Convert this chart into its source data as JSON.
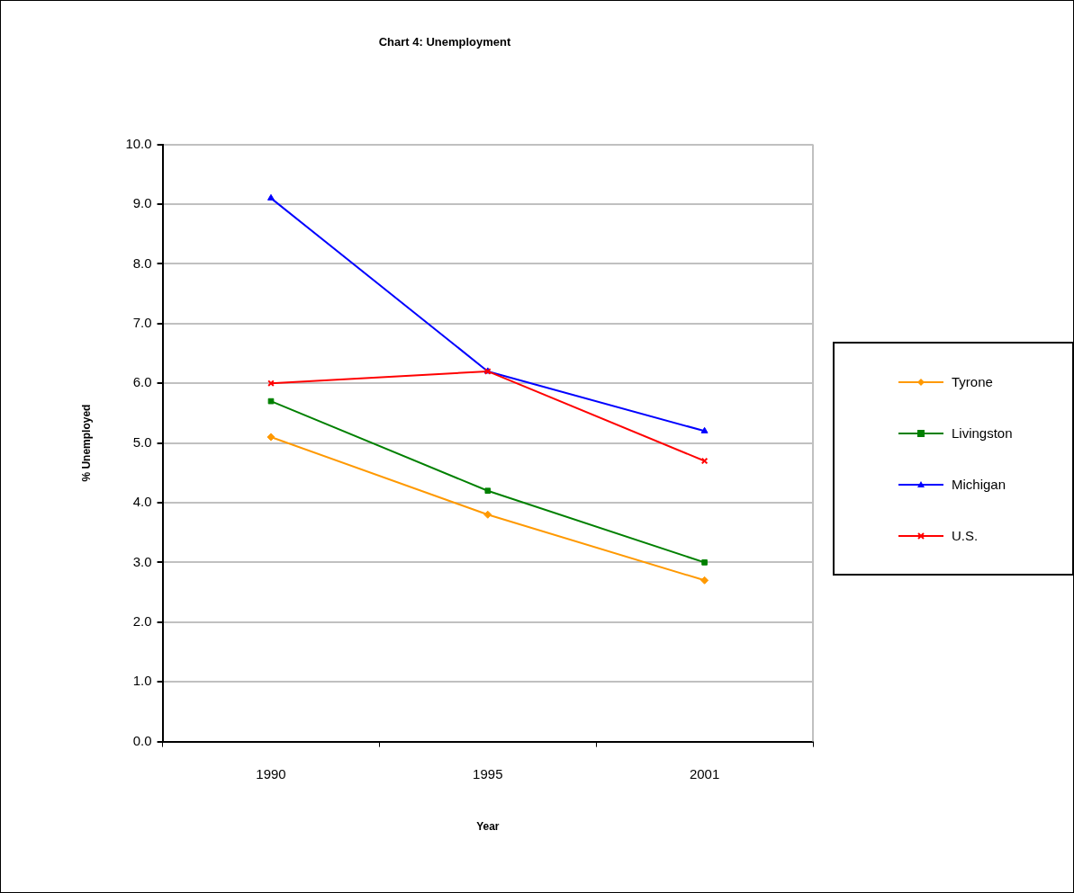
{
  "chart_data": {
    "type": "line",
    "title": "Chart 4: Unemployment",
    "xlabel": "Year",
    "ylabel": "% Unemployed",
    "categories": [
      "1990",
      "1995",
      "2001"
    ],
    "series": [
      {
        "name": "Tyrone",
        "color": "#ff9900",
        "marker": "diamond",
        "values": [
          5.1,
          3.8,
          2.7
        ]
      },
      {
        "name": "Livingston",
        "color": "#008000",
        "marker": "square",
        "values": [
          5.7,
          4.2,
          3.0
        ]
      },
      {
        "name": "Michigan",
        "color": "#0000ff",
        "marker": "triangle",
        "values": [
          9.1,
          6.2,
          5.2
        ]
      },
      {
        "name": "U.S.",
        "color": "#ff0000",
        "marker": "cross",
        "values": [
          6.0,
          6.2,
          4.7
        ]
      }
    ],
    "ylim": [
      0,
      10
    ],
    "yticks": [
      {
        "value": 0,
        "label": "0.0"
      },
      {
        "value": 1,
        "label": "1.0"
      },
      {
        "value": 2,
        "label": "2.0"
      },
      {
        "value": 3,
        "label": "3.0"
      },
      {
        "value": 4,
        "label": "4.0"
      },
      {
        "value": 5,
        "label": "5.0"
      },
      {
        "value": 6,
        "label": "6.0"
      },
      {
        "value": 7,
        "label": "7.0"
      },
      {
        "value": 8,
        "label": "8.0"
      },
      {
        "value": 9,
        "label": "9.0"
      },
      {
        "value": 10,
        "label": "10.0"
      }
    ],
    "grid": "y",
    "legend": "right",
    "line_style": "solid"
  }
}
